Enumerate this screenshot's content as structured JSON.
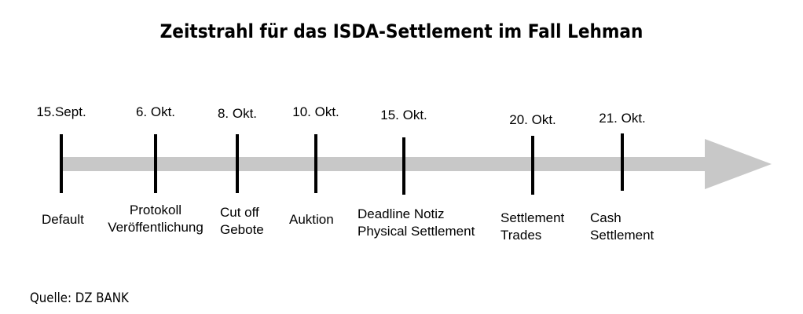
{
  "title": "Zeitstrahl für das ISDA-Settlement im Fall Lehman",
  "source": "Quelle: DZ BANK",
  "colors": {
    "arrow": "#c8c8c8",
    "tick": "#000000"
  },
  "events": [
    {
      "date": "15.Sept.",
      "label_lines": [
        "Default"
      ]
    },
    {
      "date": "6. Okt.",
      "label_lines": [
        "Protokoll",
        "Veröffentlichung"
      ]
    },
    {
      "date": "8. Okt.",
      "label_lines": [
        "Cut off",
        "Gebote"
      ]
    },
    {
      "date": "10. Okt.",
      "label_lines": [
        "Auktion"
      ]
    },
    {
      "date": "15. Okt.",
      "label_lines": [
        "Deadline Notiz",
        "Physical Settlement"
      ]
    },
    {
      "date": "20. Okt.",
      "label_lines": [
        "Settlement",
        "Trades"
      ]
    },
    {
      "date": "21. Okt.",
      "label_lines": [
        "Cash",
        "Settlement"
      ]
    }
  ]
}
